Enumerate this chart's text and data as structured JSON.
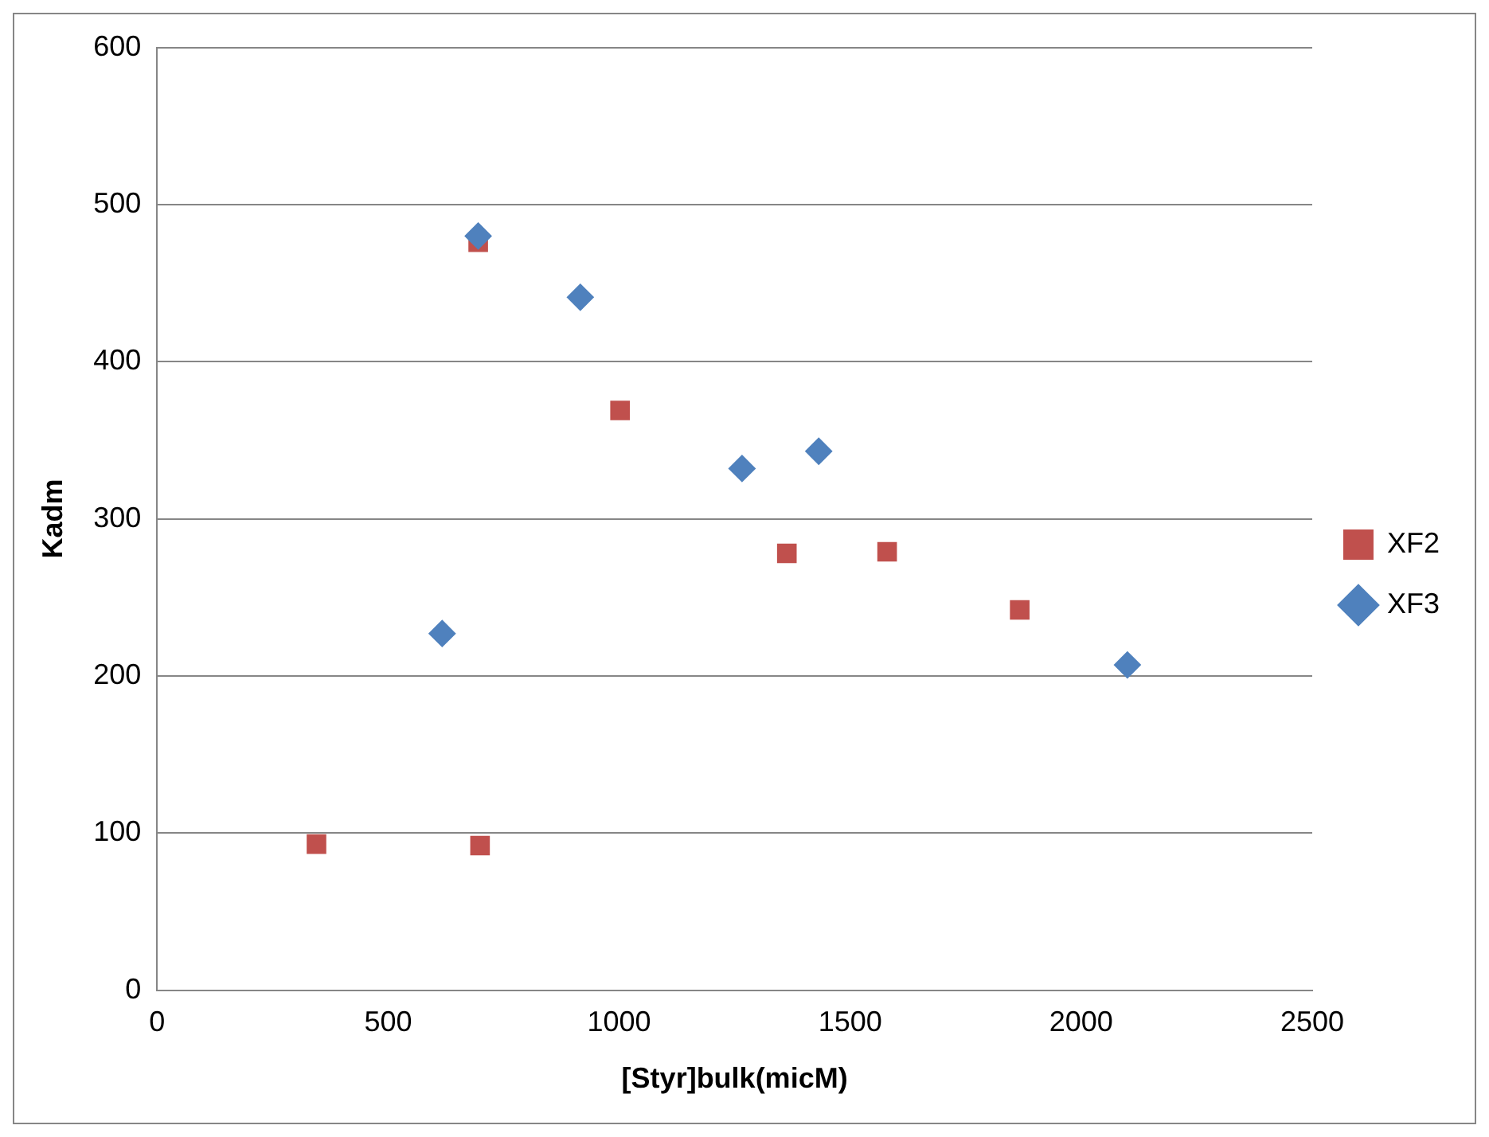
{
  "chart_data": {
    "type": "scatter",
    "xlabel": "[Styr]bulk(micM)",
    "ylabel": "Kadm",
    "xlim": [
      0,
      2500
    ],
    "xticks": [
      0,
      500,
      1000,
      1500,
      2000,
      2500
    ],
    "ylim": [
      0,
      600
    ],
    "yticks": [
      0,
      100,
      200,
      300,
      400,
      500,
      600
    ],
    "grid": "y",
    "legend": "right",
    "series": [
      {
        "name": "XF2",
        "color": "#c0504d",
        "marker": "square",
        "x": [
          345,
          699,
          695,
          1002,
          1363,
          1580,
          1867
        ],
        "values": [
          93,
          92,
          476,
          369,
          278,
          279,
          242
        ]
      },
      {
        "name": "XF3",
        "color": "#4f81bd",
        "marker": "diamond",
        "x": [
          617,
          695,
          916,
          1266,
          1432,
          2100
        ],
        "values": [
          227,
          480,
          441,
          332,
          343,
          207
        ]
      }
    ]
  }
}
